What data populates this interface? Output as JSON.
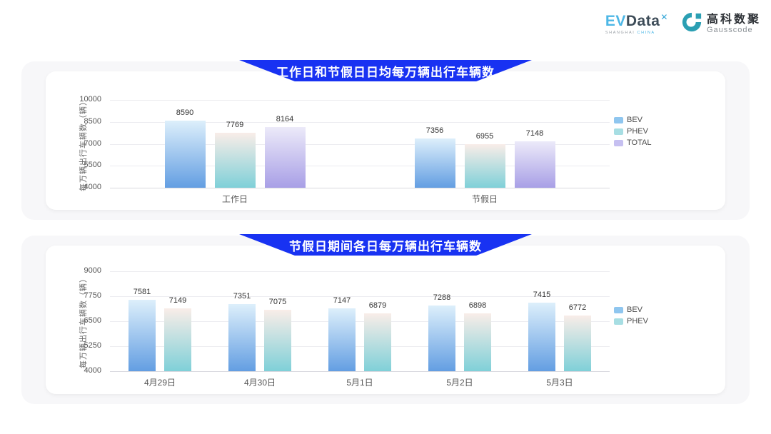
{
  "header": {
    "evdata": {
      "ev": "EV",
      "data": "Data",
      "sup": "✕",
      "subtitle_left": "SHANGHAI",
      "subtitle_right": "CHINA"
    },
    "gausscode": {
      "cn": "高科数聚",
      "en": "Gausscode"
    }
  },
  "colors": {
    "banner_blue": "#1832f2",
    "gausscode_teal": "#2b9fb3",
    "card_bg": "#f7f7f9",
    "series": {
      "BEV": {
        "top": "#ddeffb",
        "bottom": "#639ee2",
        "legend": "#8fc6ef"
      },
      "PHEV": {
        "top": "#f9ede8",
        "bottom": "#7fd0d8",
        "legend": "#a7dee3"
      },
      "TOTAL": {
        "top": "#eceaf9",
        "bottom": "#a89fe6",
        "legend": "#c6c0f1"
      }
    }
  },
  "chart_data": [
    {
      "type": "bar",
      "title": "工作日和节假日日均每万辆出行车辆数",
      "ylabel": "每万辆出行车辆数（辆）",
      "ylim": [
        4000,
        10000
      ],
      "yticks": [
        4000,
        5500,
        7000,
        8500,
        10000
      ],
      "categories": [
        "工作日",
        "节假日"
      ],
      "series": [
        {
          "name": "BEV",
          "values": [
            8590,
            7356
          ]
        },
        {
          "name": "PHEV",
          "values": [
            7769,
            6955
          ]
        },
        {
          "name": "TOTAL",
          "values": [
            8164,
            7148
          ]
        }
      ],
      "grid": true,
      "legend_position": "right"
    },
    {
      "type": "bar",
      "title": "节假日期间各日每万辆出行车辆数",
      "ylabel": "每万辆出行车辆数（辆）",
      "ylim": [
        4000,
        9000
      ],
      "yticks": [
        4000,
        5250,
        6500,
        7750,
        9000
      ],
      "categories": [
        "4月29日",
        "4月30日",
        "5月1日",
        "5月2日",
        "5月3日"
      ],
      "series": [
        {
          "name": "BEV",
          "values": [
            7581,
            7351,
            7147,
            7288,
            7415
          ]
        },
        {
          "name": "PHEV",
          "values": [
            7149,
            7075,
            6879,
            6898,
            6772
          ]
        }
      ],
      "grid": true,
      "legend_position": "right"
    }
  ]
}
